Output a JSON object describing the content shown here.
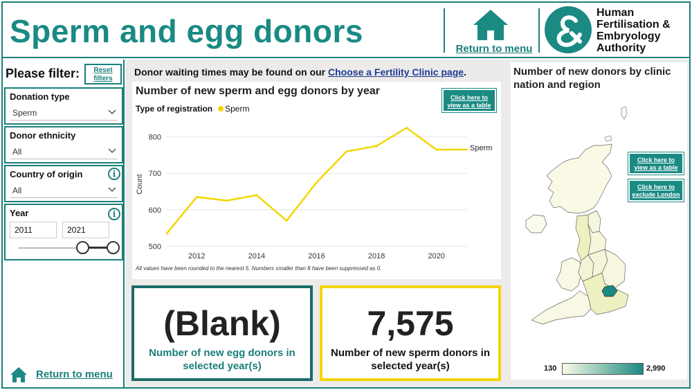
{
  "header": {
    "title": "Sperm and egg donors",
    "return_label": "Return to menu",
    "logo_text": [
      "Human",
      "Fertilisation &",
      "Embryology",
      "Authority"
    ]
  },
  "sidebar": {
    "heading": "Please filter:",
    "reset_label": "Reset filters",
    "filters": [
      {
        "label": "Donation type",
        "value": "Sperm"
      },
      {
        "label": "Donor ethnicity",
        "value": "All"
      },
      {
        "label": "Country of origin",
        "value": "All"
      }
    ],
    "year": {
      "label": "Year",
      "start": "2011",
      "end": "2021"
    },
    "info_glyph": "i",
    "return_label": "Return to menu"
  },
  "notice": {
    "text": "Donor waiting times may be found on our ",
    "link": "Choose a Fertility Clinic page",
    "end": "."
  },
  "chart_data": {
    "type": "line",
    "title": "Number of new sperm and egg donors by year",
    "legend_title": "Type of registration",
    "xlabel": "",
    "ylabel": "Count",
    "x": [
      2011,
      2012,
      2013,
      2014,
      2015,
      2016,
      2017,
      2018,
      2019,
      2020,
      2021
    ],
    "series": [
      {
        "name": "Sperm",
        "color": "#f2d600",
        "values": [
          535,
          635,
          625,
          640,
          570,
          675,
          760,
          775,
          825,
          765,
          765
        ]
      }
    ],
    "x_ticks": [
      2012,
      2014,
      2016,
      2018,
      2020
    ],
    "y_ticks": [
      500,
      600,
      700,
      800
    ],
    "ylim": [
      495,
      845
    ],
    "grid": true,
    "table_button": "Click here to view as a table",
    "footnote": "All values have been rounded to the nearest 5. Numbers smaller than 8 have been suppressed as 0."
  },
  "kpis": {
    "egg": {
      "value": "(Blank)",
      "caption": "Number of new egg donors in selected year(s)"
    },
    "sperm": {
      "value": "7,575",
      "caption": "Number of new sperm donors in selected year(s)"
    }
  },
  "map": {
    "title": "Number of new donors by clinic nation and region",
    "table_button": "Click here to view as a table",
    "exclude_button": "Click here to exclude London",
    "scale_min": "130",
    "scale_max": "2,990",
    "scale_colors": [
      "#fbfbe6",
      "#1a8a83"
    ]
  },
  "colors": {
    "accent": "#1a8a83",
    "sperm": "#f2d600"
  }
}
